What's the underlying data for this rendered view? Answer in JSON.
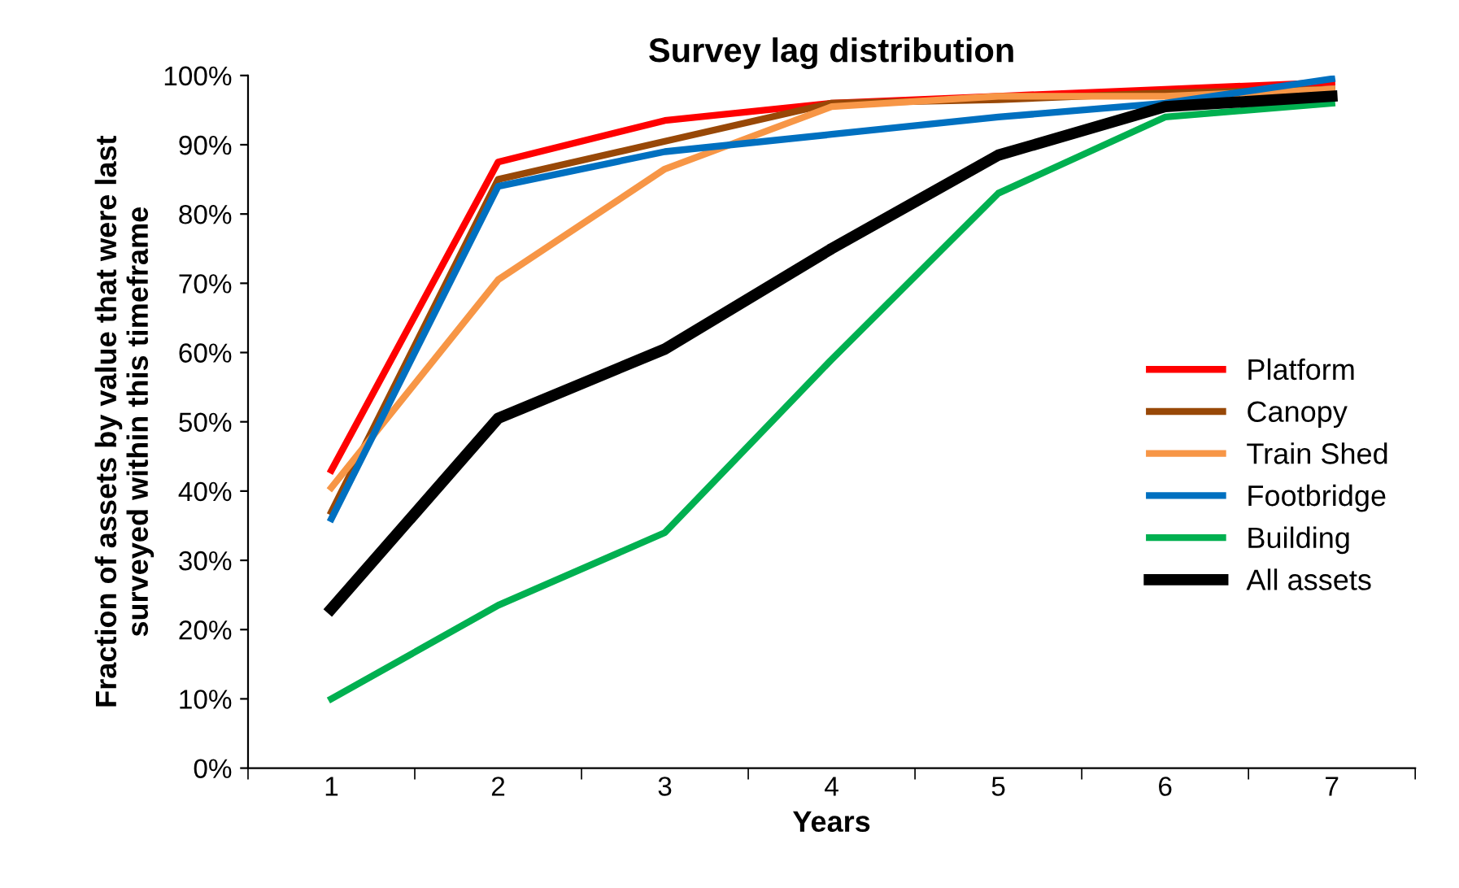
{
  "chart_data": {
    "type": "line",
    "title": "Survey lag distribution",
    "xlabel": "Years",
    "ylabel": "Fraction of assets by value that were last\nsurveyed within this timeframe",
    "categories": [
      "1",
      "2",
      "3",
      "4",
      "5",
      "6",
      "7"
    ],
    "series": [
      {
        "name": "Platform",
        "color": "#ff0000",
        "values": [
          43,
          87.5,
          93.5,
          96,
          97,
          98,
          99
        ]
      },
      {
        "name": "Canopy",
        "color": "#984807",
        "values": [
          37,
          85,
          90.5,
          96,
          96.5,
          97.5,
          98
        ]
      },
      {
        "name": "Train Shed",
        "color": "#f79646",
        "values": [
          40.5,
          70.5,
          86.5,
          95.5,
          97,
          97,
          98
        ]
      },
      {
        "name": "Footbridge",
        "color": "#0070c0",
        "values": [
          36,
          84,
          89,
          91.5,
          94,
          96,
          99.5
        ]
      },
      {
        "name": "Building",
        "color": "#00b050",
        "values": [
          10,
          23.5,
          34,
          59,
          83,
          94,
          96
        ]
      },
      {
        "name": "All assets",
        "color": "#000000",
        "values": [
          23,
          50.5,
          60.5,
          75,
          88.5,
          95.5,
          97
        ]
      }
    ],
    "ylim": [
      0,
      100
    ],
    "yticks": [
      {
        "value": 0,
        "label": "0%"
      },
      {
        "value": 10,
        "label": "10%"
      },
      {
        "value": 20,
        "label": "20%"
      },
      {
        "value": 30,
        "label": "30%"
      },
      {
        "value": 40,
        "label": "40%"
      },
      {
        "value": 50,
        "label": "50%"
      },
      {
        "value": 60,
        "label": "60%"
      },
      {
        "value": 70,
        "label": "70%"
      },
      {
        "value": 80,
        "label": "80%"
      },
      {
        "value": 90,
        "label": "90%"
      },
      {
        "value": 100,
        "label": "100%"
      }
    ],
    "grid": false,
    "legend": "right",
    "marker": "none",
    "line_style": "solid"
  }
}
